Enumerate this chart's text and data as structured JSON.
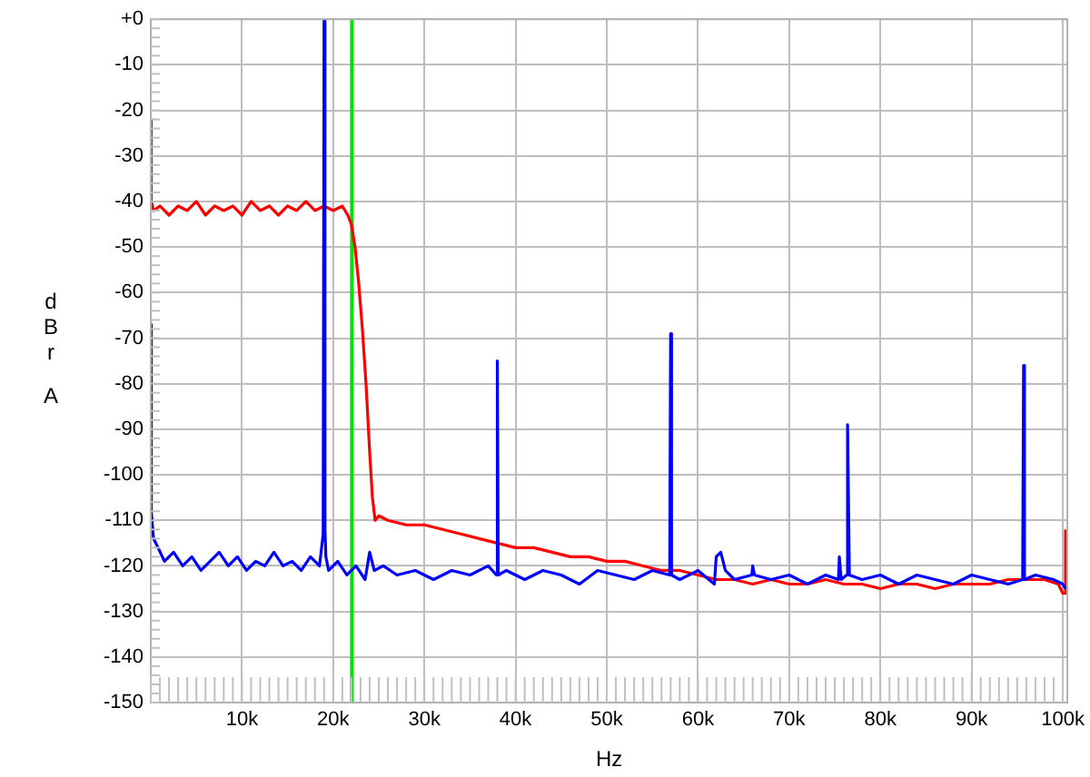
{
  "chart_data": {
    "type": "line",
    "xlabel": "Hz",
    "ylabel": "dBr A",
    "xlim": [
      0,
      100500
    ],
    "ylim": [
      -150,
      0
    ],
    "xticks": [
      {
        "value": 10000,
        "label": "10k"
      },
      {
        "value": 20000,
        "label": "20k"
      },
      {
        "value": 30000,
        "label": "30k"
      },
      {
        "value": 40000,
        "label": "40k"
      },
      {
        "value": 50000,
        "label": "50k"
      },
      {
        "value": 60000,
        "label": "60k"
      },
      {
        "value": 70000,
        "label": "70k"
      },
      {
        "value": 80000,
        "label": "80k"
      },
      {
        "value": 90000,
        "label": "90k"
      },
      {
        "value": 100000,
        "label": "100k"
      }
    ],
    "yticks": [
      {
        "value": 0,
        "label": "+0"
      },
      -10,
      -20,
      -30,
      -40,
      -50,
      -60,
      -70,
      -80,
      -90,
      -100,
      -110,
      -120,
      -130,
      -140,
      -150
    ],
    "grid": true,
    "legend": false,
    "marker": "none",
    "line_style": "solid",
    "ref_lines": [
      {
        "axis": "x",
        "value": 22050,
        "color": "#00e000"
      }
    ],
    "series": [
      {
        "color": "#0000ff",
        "x": [
          0,
          50,
          300,
          800,
          1500,
          2500,
          3500,
          4500,
          5500,
          6500,
          7500,
          8500,
          9500,
          10500,
          11500,
          12500,
          13500,
          14500,
          15500,
          16500,
          17500,
          18500,
          18900,
          19000,
          19100,
          19200,
          19500,
          20500,
          21500,
          22500,
          23500,
          24000,
          24500,
          25500,
          27000,
          29000,
          31000,
          33000,
          35000,
          37000,
          37900,
          38000,
          38100,
          39000,
          41000,
          43000,
          45000,
          47000,
          49000,
          51000,
          53000,
          55000,
          56900,
          57000,
          57100,
          58000,
          60000,
          61800,
          62000,
          62500,
          63000,
          64000,
          65900,
          66000,
          66200,
          68000,
          70000,
          72000,
          74000,
          75400,
          75500,
          75700,
          76300,
          76400,
          76600,
          78000,
          80000,
          82000,
          84000,
          86000,
          88000,
          90000,
          92000,
          94000,
          95600,
          95700,
          95800,
          97000,
          99000,
          100000,
          100300
        ],
        "values": [
          -67,
          -108,
          -114,
          -116,
          -119,
          -117,
          -120,
          -118,
          -121,
          -119,
          -117,
          -120,
          -118,
          -121,
          -119,
          -120,
          -117,
          -120,
          -119,
          -121,
          -118,
          -120,
          -113,
          0,
          -112,
          -118,
          -121,
          -119,
          -122,
          -120,
          -123,
          -117,
          -121,
          -120,
          -122,
          -121,
          -123,
          -121,
          -122,
          -120,
          -122,
          -75,
          -122,
          -121,
          -123,
          -121,
          -122,
          -124,
          -121,
          -122,
          -123,
          -121,
          -122,
          -69,
          -122,
          -123,
          -121,
          -124,
          -118,
          -117,
          -121,
          -123,
          -122,
          -120,
          -122,
          -123,
          -122,
          -124,
          -122,
          -123,
          -118,
          -123,
          -122,
          -89,
          -122,
          -123,
          -122,
          -124,
          -122,
          -123,
          -124,
          -122,
          -123,
          -124,
          -123,
          -76,
          -123,
          -122,
          -123,
          -124,
          -125
        ]
      },
      {
        "color": "#ff0000",
        "x": [
          0,
          50,
          300,
          1000,
          2000,
          3000,
          4000,
          5000,
          6000,
          7000,
          8000,
          9000,
          10000,
          11000,
          12000,
          13000,
          14000,
          15000,
          16000,
          17000,
          18000,
          19000,
          20000,
          21000,
          21600,
          22000,
          22400,
          22800,
          23200,
          23600,
          24000,
          24300,
          24600,
          25000,
          26000,
          28000,
          30000,
          32000,
          34000,
          36000,
          38000,
          40000,
          42000,
          44000,
          46000,
          48000,
          50000,
          52000,
          54000,
          56000,
          58000,
          60000,
          62000,
          64000,
          66000,
          68000,
          70000,
          72000,
          74000,
          76000,
          78000,
          80000,
          82000,
          84000,
          86000,
          88000,
          90000,
          92000,
          94000,
          96000,
          98000,
          99500,
          100000,
          100250,
          100300
        ],
        "values": [
          -22,
          -40,
          -42,
          -41,
          -43,
          -41,
          -42,
          -40,
          -43,
          -41,
          -42,
          -41,
          -43,
          -40,
          -42,
          -41,
          -43,
          -41,
          -42,
          -40,
          -42,
          -41,
          -42,
          -41,
          -43,
          -45,
          -50,
          -58,
          -68,
          -80,
          -95,
          -105,
          -110,
          -109,
          -110,
          -111,
          -111,
          -112,
          -113,
          -114,
          -115,
          -116,
          -116,
          -117,
          -118,
          -118,
          -119,
          -119,
          -120,
          -121,
          -121,
          -122,
          -123,
          -123,
          -124,
          -123,
          -124,
          -124,
          -123,
          -124,
          -124,
          -125,
          -124,
          -124,
          -125,
          -124,
          -124,
          -124,
          -123,
          -123,
          -123,
          -124,
          -126,
          -126,
          -112
        ]
      }
    ]
  }
}
